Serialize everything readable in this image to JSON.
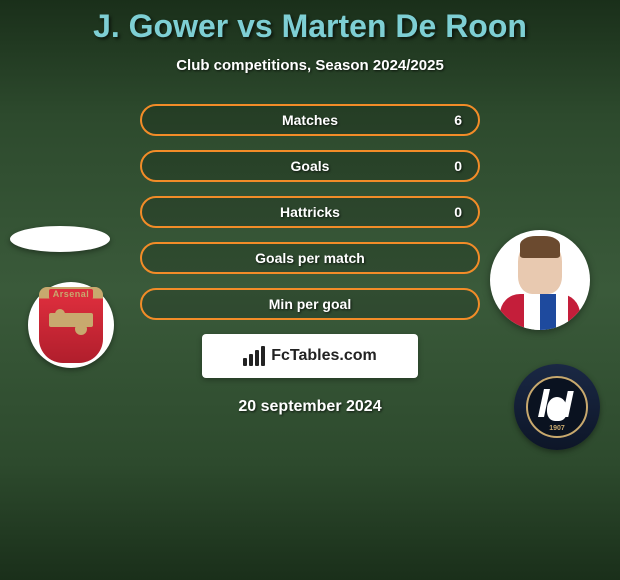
{
  "title": "J. Gower vs Marten De Roon",
  "subtitle": "Club competitions, Season 2024/2025",
  "stats": [
    {
      "label": "Matches",
      "right_value": "6",
      "border_color": "#f28c28"
    },
    {
      "label": "Goals",
      "right_value": "0",
      "border_color": "#f28c28"
    },
    {
      "label": "Hattricks",
      "right_value": "0",
      "border_color": "#f28c28"
    },
    {
      "label": "Goals per match",
      "right_value": "",
      "border_color": "#f28c28"
    },
    {
      "label": "Min per goal",
      "right_value": "",
      "border_color": "#f28c28"
    }
  ],
  "branding": {
    "site_name": "FcTables.com"
  },
  "date": "20 september 2024",
  "badges": {
    "left_club": "Arsenal",
    "left_year": "",
    "right_club": "Atalanta",
    "right_year": "1907"
  },
  "colors": {
    "title_color": "#7ecfd4",
    "text_color": "#ffffff",
    "pill_border": "#f28c28",
    "bg_top": "#1a2f1a",
    "bg_mid": "#3a5a3a"
  }
}
